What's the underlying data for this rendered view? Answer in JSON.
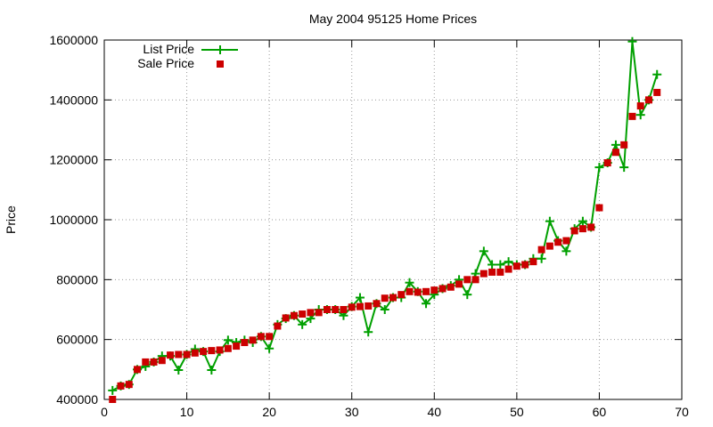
{
  "chart_data": {
    "type": "line",
    "title": "May 2004 95125 Home Prices",
    "xlabel": "",
    "ylabel": "Price",
    "xlim": [
      0,
      70
    ],
    "ylim": [
      400000,
      1600000
    ],
    "xticks": [
      0,
      10,
      20,
      30,
      40,
      50,
      60,
      70
    ],
    "yticks": [
      400000,
      600000,
      800000,
      1000000,
      1200000,
      1400000,
      1600000
    ],
    "xtick_labels": [
      "0",
      "10",
      "20",
      "30",
      "40",
      "50",
      "60",
      "70"
    ],
    "ytick_labels": [
      "400000",
      "600000",
      "800000",
      "1000000",
      "1200000",
      "1400000",
      "1600000"
    ],
    "grid": true,
    "legend_position": "top-left",
    "series": [
      {
        "name": "List Price",
        "style": "line-plus",
        "color": "#00a000",
        "x": [
          1,
          2,
          3,
          4,
          5,
          6,
          7,
          8,
          9,
          10,
          11,
          12,
          13,
          14,
          15,
          16,
          17,
          18,
          19,
          20,
          21,
          22,
          23,
          24,
          25,
          26,
          27,
          28,
          29,
          30,
          31,
          32,
          33,
          34,
          35,
          36,
          37,
          38,
          39,
          40,
          41,
          42,
          43,
          44,
          45,
          46,
          47,
          48,
          49,
          50,
          51,
          52,
          53,
          54,
          55,
          56,
          57,
          58,
          59,
          60,
          61,
          62,
          63,
          64,
          65,
          66,
          67
        ],
        "y": [
          430000,
          445000,
          450000,
          500000,
          510000,
          525000,
          545000,
          545000,
          498000,
          550000,
          568000,
          560000,
          498000,
          560000,
          598000,
          590000,
          598000,
          590000,
          610000,
          570000,
          650000,
          670000,
          680000,
          650000,
          670000,
          700000,
          700000,
          700000,
          680000,
          710000,
          740000,
          625000,
          720000,
          700000,
          740000,
          740000,
          790000,
          760000,
          720000,
          750000,
          770000,
          780000,
          800000,
          750000,
          820000,
          895000,
          850000,
          850000,
          860000,
          850000,
          850000,
          870000,
          870000,
          995000,
          930000,
          895000,
          970000,
          995000,
          975000,
          1175000,
          1190000,
          1250000,
          1175000,
          1595000,
          1350000,
          1400000,
          1485000
        ]
      },
      {
        "name": "Sale Price",
        "style": "points-square",
        "color": "#cc0000",
        "x": [
          1,
          2,
          3,
          4,
          5,
          6,
          7,
          8,
          9,
          10,
          11,
          12,
          13,
          14,
          15,
          16,
          17,
          18,
          19,
          20,
          21,
          22,
          23,
          24,
          25,
          26,
          27,
          28,
          29,
          30,
          31,
          32,
          33,
          34,
          35,
          36,
          37,
          38,
          39,
          40,
          41,
          42,
          43,
          44,
          45,
          46,
          47,
          48,
          49,
          50,
          51,
          52,
          53,
          54,
          55,
          56,
          57,
          58,
          59,
          60,
          61,
          62,
          63,
          64,
          65,
          66,
          67
        ],
        "y": [
          400000,
          445000,
          450000,
          500000,
          525000,
          525000,
          530000,
          548000,
          550000,
          550000,
          555000,
          560000,
          563000,
          565000,
          570000,
          578000,
          590000,
          598000,
          610000,
          610000,
          645000,
          672000,
          680000,
          685000,
          690000,
          690000,
          700000,
          700000,
          700000,
          708000,
          710000,
          712000,
          720000,
          738000,
          740000,
          750000,
          760000,
          758000,
          760000,
          765000,
          770000,
          775000,
          785000,
          800000,
          800000,
          820000,
          825000,
          825000,
          835000,
          845000,
          850000,
          860000,
          900000,
          912000,
          925000,
          930000,
          963000,
          970000,
          975000,
          1040000,
          1190000,
          1225000,
          1250000,
          1345000,
          1380000,
          1400000,
          1425000
        ]
      }
    ]
  }
}
